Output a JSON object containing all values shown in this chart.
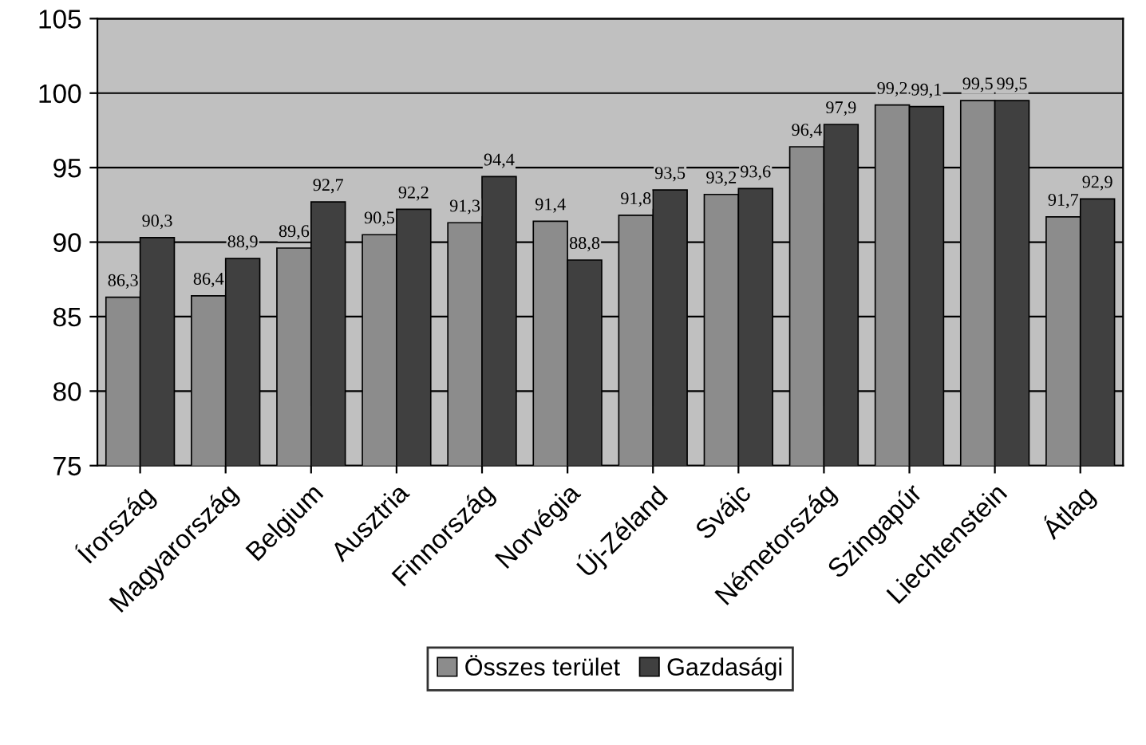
{
  "chart_data": {
    "type": "bar",
    "categories": [
      "Írország",
      "Magyarország",
      "Belgium",
      "Ausztria",
      "Finnország",
      "Norvégia",
      "Új-Zéland",
      "Svájc",
      "Németország",
      "Szingapúr",
      "Liechtenstein",
      "Átlag"
    ],
    "series": [
      {
        "name": "Összes terület",
        "color": "#8c8c8c",
        "values": [
          86.3,
          86.4,
          89.6,
          90.5,
          91.3,
          91.4,
          91.8,
          93.2,
          96.4,
          99.2,
          99.5,
          91.7
        ],
        "value_labels": [
          "86,3",
          "86,4",
          "89,6",
          "90,5",
          "91,3",
          "91,4",
          "91,8",
          "93,2",
          "96,4",
          "99,2",
          "99,5",
          "91,7"
        ]
      },
      {
        "name": "Gazdasági",
        "color": "#404040",
        "values": [
          90.3,
          88.9,
          92.7,
          92.2,
          94.4,
          88.8,
          93.5,
          93.6,
          97.9,
          99.1,
          99.5,
          92.9
        ],
        "value_labels": [
          "90,3",
          "88,9",
          "92,7",
          "92,2",
          "94,4",
          "88,8",
          "93,5",
          "93,6",
          "97,9",
          "99,1",
          "99,5",
          "92,9"
        ]
      }
    ],
    "ylim": [
      75,
      105
    ],
    "yticks": [
      75,
      80,
      85,
      90,
      95,
      100,
      105
    ],
    "grid": "y",
    "legend": "bottom"
  }
}
